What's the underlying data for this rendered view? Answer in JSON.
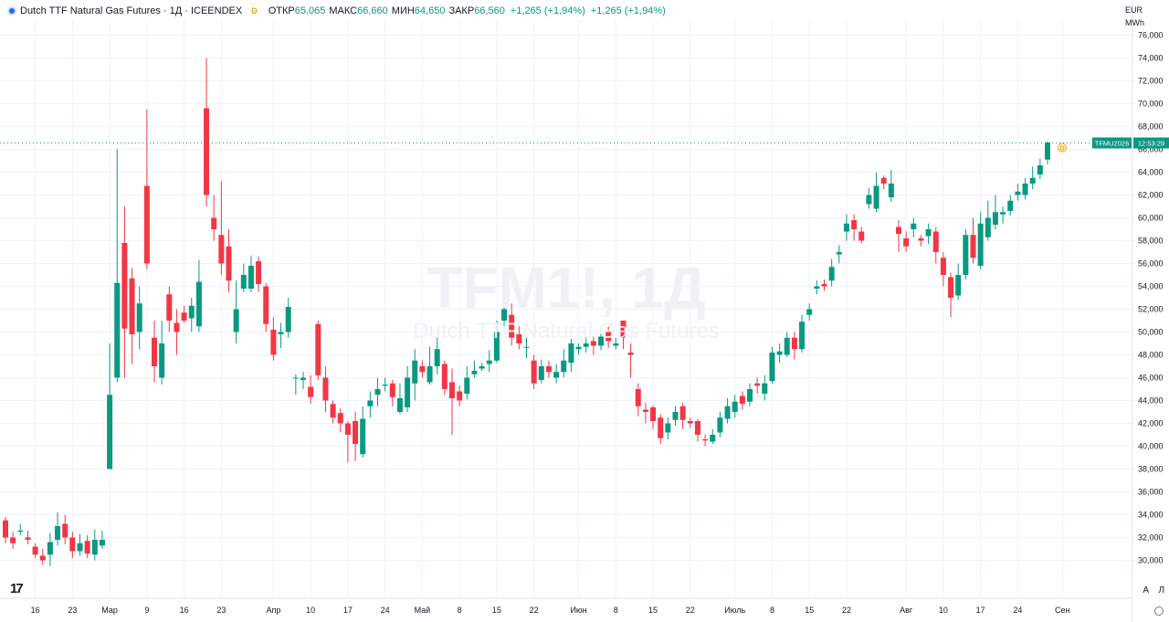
{
  "header": {
    "title": "Dutch TTF Natural Gas Futures · 1Д · ICEENDEX",
    "market_badge": "D",
    "open_label": "ОТКР",
    "open": "65,065",
    "high_label": "МАКС",
    "high": "66,660",
    "low_label": "МИН",
    "low": "64,650",
    "close_label": "ЗАКР",
    "close": "66,560",
    "change": "+1,265 (+1,94%)",
    "change2": "+1,265 (+1,94%)"
  },
  "units": {
    "currency": "EUR",
    "unit": "MWh"
  },
  "watermark": {
    "symbol": "TFM1!, 1Д",
    "name": "Dutch TTF Natural Gas Futures"
  },
  "price_label": {
    "ticker": "TFMU2026",
    "countdown": "12:53:29"
  },
  "controls": {
    "auto": "A",
    "log": "Л"
  },
  "logo": "17",
  "colors": {
    "up": "#089981",
    "down": "#f23645",
    "price_line": "#089981",
    "grid": "#f0f3fa"
  },
  "chart_data": {
    "type": "candlestick",
    "title": "Dutch TTF Natural Gas Futures · 1Д · ICEENDEX",
    "ylim": [
      29,
      77
    ],
    "y_ticks": [
      "30,000",
      "32,000",
      "34,000",
      "36,000",
      "38,000",
      "40,000",
      "42,000",
      "44,000",
      "46,000",
      "48,000",
      "50,000",
      "52,000",
      "54,000",
      "56,000",
      "58,000",
      "60,000",
      "62,000",
      "64,000",
      "66,000",
      "68,000",
      "70,000",
      "72,000",
      "74,000",
      "76,000"
    ],
    "x_ticks": [
      {
        "label": "16",
        "i": 4
      },
      {
        "label": "23",
        "i": 9
      },
      {
        "label": "Мар",
        "i": 14
      },
      {
        "label": "9",
        "i": 19
      },
      {
        "label": "16",
        "i": 24
      },
      {
        "label": "23",
        "i": 29
      },
      {
        "label": "Апр",
        "i": 36
      },
      {
        "label": "10",
        "i": 41
      },
      {
        "label": "17",
        "i": 46
      },
      {
        "label": "24",
        "i": 51
      },
      {
        "label": "Май",
        "i": 56
      },
      {
        "label": "8",
        "i": 61
      },
      {
        "label": "15",
        "i": 66
      },
      {
        "label": "22",
        "i": 71
      },
      {
        "label": "Июн",
        "i": 77
      },
      {
        "label": "8",
        "i": 82
      },
      {
        "label": "15",
        "i": 87
      },
      {
        "label": "22",
        "i": 92
      },
      {
        "label": "Июль",
        "i": 98
      },
      {
        "label": "8",
        "i": 103
      },
      {
        "label": "15",
        "i": 108
      },
      {
        "label": "22",
        "i": 113
      },
      {
        "label": "Авг",
        "i": 121
      },
      {
        "label": "10",
        "i": 126
      },
      {
        "label": "17",
        "i": 131
      },
      {
        "label": "24",
        "i": 136
      },
      {
        "label": "Сен",
        "i": 142
      }
    ],
    "last_price": 66.56,
    "candles": [
      [
        33.5,
        32.0,
        33.8,
        31.5
      ],
      [
        32.0,
        31.5,
        32.5,
        31.0
      ],
      [
        32.5,
        32.6,
        33.2,
        32.2
      ],
      [
        32.0,
        31.8,
        32.6,
        31.4
      ],
      [
        31.2,
        30.5,
        31.5,
        30.2
      ],
      [
        30.4,
        30.0,
        31.0,
        29.6
      ],
      [
        30.5,
        31.6,
        32.4,
        29.5
      ],
      [
        31.8,
        33.0,
        34.2,
        31.3
      ],
      [
        33.2,
        32.0,
        34.0,
        31.4
      ],
      [
        32.0,
        30.8,
        32.5,
        30.2
      ],
      [
        30.8,
        31.5,
        32.3,
        30.4
      ],
      [
        31.7,
        30.6,
        32.2,
        30.2
      ],
      [
        30.5,
        31.8,
        32.7,
        30.0
      ],
      [
        31.3,
        31.8,
        32.6,
        31.0
      ],
      [
        38.0,
        44.5,
        49.0,
        38.0
      ],
      [
        46.0,
        54.3,
        66.0,
        45.6
      ],
      [
        57.8,
        50.3,
        61.0,
        46.0
      ],
      [
        54.7,
        49.8,
        55.6,
        47.2
      ],
      [
        50.0,
        52.5,
        54.0,
        48.5
      ],
      [
        62.8,
        56.0,
        69.5,
        55.5
      ],
      [
        49.5,
        47.0,
        51.0,
        45.6
      ],
      [
        46.0,
        49.0,
        51.0,
        45.4
      ],
      [
        53.3,
        51.0,
        54.0,
        50.0
      ],
      [
        50.8,
        50.0,
        52.0,
        48.0
      ],
      [
        51.7,
        51.0,
        52.3,
        50.8
      ],
      [
        51.2,
        52.3,
        53.0,
        50.0
      ],
      [
        50.5,
        54.4,
        56.3,
        50.0
      ],
      [
        69.6,
        62.0,
        74.0,
        61.0
      ],
      [
        60.0,
        59.0,
        62.0,
        58.0
      ],
      [
        58.5,
        56.0,
        63.2,
        55.0
      ],
      [
        57.5,
        54.5,
        59.0,
        53.5
      ],
      [
        50.0,
        52.0,
        54.5,
        49.0
      ],
      [
        53.8,
        55.0,
        56.0,
        53.5
      ],
      [
        53.8,
        55.8,
        56.7,
        53.5
      ],
      [
        56.2,
        54.2,
        56.6,
        53.5
      ],
      [
        54.0,
        50.7,
        54.3,
        50.0
      ],
      [
        50.2,
        48.0,
        51.3,
        47.5
      ],
      [
        49.8,
        50.0,
        50.8,
        48.6
      ],
      [
        50.0,
        52.2,
        53.0,
        49.5
      ],
      [
        46.0,
        46.0,
        46.3,
        44.5
      ],
      [
        45.8,
        46.0,
        46.5,
        45.0
      ],
      [
        45.2,
        44.3,
        46.2,
        43.7
      ],
      [
        50.7,
        46.2,
        51.0,
        45.8
      ],
      [
        46.0,
        44.0,
        47.0,
        43.0
      ],
      [
        43.7,
        42.5,
        44.0,
        42.0
      ],
      [
        42.9,
        42.0,
        43.3,
        41.2
      ],
      [
        42.0,
        41.0,
        42.2,
        38.6
      ],
      [
        42.2,
        40.2,
        43.0,
        38.7
      ],
      [
        39.3,
        42.4,
        43.5,
        39.0
      ],
      [
        43.5,
        44.0,
        44.8,
        42.5
      ],
      [
        44.5,
        45.0,
        46.0,
        43.5
      ],
      [
        45.3,
        45.4,
        46.0,
        44.8
      ],
      [
        45.5,
        44.3,
        45.8,
        43.5
      ],
      [
        43.0,
        44.2,
        45.5,
        42.8
      ],
      [
        43.4,
        46.0,
        47.0,
        43.0
      ],
      [
        45.5,
        47.5,
        48.5,
        44.0
      ],
      [
        47.0,
        46.5,
        47.5,
        46.0
      ],
      [
        45.6,
        47.0,
        48.7,
        45.4
      ],
      [
        47.0,
        48.5,
        49.5,
        46.3
      ],
      [
        47.2,
        45.0,
        47.5,
        44.5
      ],
      [
        45.6,
        44.2,
        46.8,
        41.0
      ],
      [
        44.8,
        44.0,
        45.3,
        43.5
      ],
      [
        44.6,
        46.0,
        47.0,
        44.1
      ],
      [
        46.3,
        46.6,
        47.5,
        46.0
      ],
      [
        46.8,
        47.0,
        47.3,
        46.6
      ],
      [
        47.2,
        47.5,
        48.4,
        46.5
      ],
      [
        47.5,
        50.0,
        51.0,
        47.3
      ],
      [
        51.0,
        52.0,
        52.5,
        50.5
      ],
      [
        51.5,
        49.5,
        52.5,
        48.8
      ],
      [
        49.8,
        49.0,
        50.5,
        48.5
      ],
      [
        48.7,
        48.7,
        49.5,
        47.7
      ],
      [
        47.5,
        45.5,
        48.0,
        45.0
      ],
      [
        45.8,
        47.0,
        47.6,
        45.5
      ],
      [
        47.0,
        46.5,
        47.5,
        46.0
      ],
      [
        46.0,
        46.5,
        47.2,
        45.5
      ],
      [
        46.5,
        47.5,
        48.5,
        46.0
      ],
      [
        47.3,
        49.0,
        49.4,
        46.5
      ],
      [
        48.5,
        48.7,
        49.0,
        48.0
      ],
      [
        48.7,
        49.0,
        49.5,
        48.2
      ],
      [
        49.2,
        48.8,
        49.6,
        48.0
      ],
      [
        48.8,
        49.6,
        50.0,
        48.4
      ],
      [
        50.0,
        49.2,
        50.5,
        48.6
      ],
      [
        48.8,
        49.0,
        49.5,
        48.5
      ],
      [
        51.0,
        49.5,
        51.0,
        48.5
      ],
      [
        48.2,
        48.0,
        49.0,
        46.0
      ],
      [
        45.0,
        43.5,
        45.5,
        42.6
      ],
      [
        43.2,
        43.0,
        43.8,
        42.0
      ],
      [
        43.4,
        42.2,
        43.6,
        41.5
      ],
      [
        42.5,
        40.7,
        42.8,
        40.2
      ],
      [
        41.2,
        42.0,
        42.5,
        40.6
      ],
      [
        42.3,
        43.0,
        43.5,
        41.8
      ],
      [
        43.5,
        42.3,
        43.8,
        41.5
      ],
      [
        42.2,
        42.0,
        42.5,
        41.6
      ],
      [
        42.2,
        41.0,
        42.4,
        40.4
      ],
      [
        40.6,
        40.5,
        41.0,
        40.0
      ],
      [
        40.4,
        41.0,
        41.5,
        40.2
      ],
      [
        41.2,
        42.5,
        43.0,
        40.8
      ],
      [
        42.4,
        43.5,
        44.2,
        42.0
      ],
      [
        43.0,
        43.9,
        44.5,
        42.5
      ],
      [
        44.4,
        43.7,
        44.8,
        43.2
      ],
      [
        43.9,
        45.0,
        45.5,
        43.5
      ],
      [
        45.5,
        45.3,
        46.0,
        44.6
      ],
      [
        44.6,
        45.5,
        46.2,
        44.0
      ],
      [
        45.7,
        48.2,
        48.7,
        45.5
      ],
      [
        48.0,
        48.3,
        49.0,
        47.3
      ],
      [
        48.0,
        49.5,
        50.0,
        47.8
      ],
      [
        49.5,
        48.5,
        50.0,
        47.6
      ],
      [
        48.5,
        50.9,
        51.5,
        48.2
      ],
      [
        51.5,
        52.0,
        52.5,
        51.0
      ],
      [
        53.8,
        54.0,
        54.5,
        53.3
      ],
      [
        54.2,
        54.0,
        54.6,
        53.6
      ],
      [
        54.5,
        55.7,
        56.4,
        54.0
      ],
      [
        56.8,
        57.0,
        57.6,
        56.0
      ],
      [
        58.8,
        59.5,
        60.3,
        58.0
      ],
      [
        59.8,
        59.0,
        60.3,
        58.0
      ],
      [
        58.8,
        58.0,
        59.2,
        57.8
      ],
      [
        61.2,
        62.0,
        62.6,
        60.8
      ],
      [
        60.8,
        62.8,
        64.0,
        60.5
      ],
      [
        63.5,
        63.0,
        63.7,
        62.5
      ],
      [
        61.8,
        63.0,
        64.2,
        61.4
      ],
      [
        59.2,
        58.6,
        59.8,
        57.0
      ],
      [
        58.2,
        57.5,
        58.8,
        57.0
      ],
      [
        59.0,
        59.5,
        60.0,
        58.3
      ],
      [
        58.2,
        58.0,
        58.5,
        57.5
      ],
      [
        58.4,
        59.0,
        59.5,
        57.7
      ],
      [
        58.8,
        57.0,
        59.2,
        56.0
      ],
      [
        56.5,
        55.0,
        57.0,
        54.0
      ],
      [
        54.8,
        53.0,
        55.2,
        51.3
      ],
      [
        53.2,
        55.0,
        56.0,
        52.8
      ],
      [
        55.0,
        58.5,
        59.0,
        54.6
      ],
      [
        58.5,
        56.5,
        60.0,
        56.0
      ],
      [
        55.8,
        59.5,
        60.5,
        55.5
      ],
      [
        58.3,
        60.0,
        61.5,
        58.0
      ],
      [
        59.4,
        60.5,
        62.0,
        59.0
      ],
      [
        60.3,
        60.5,
        61.0,
        59.5
      ],
      [
        60.6,
        61.5,
        62.0,
        60.2
      ],
      [
        62.0,
        62.3,
        63.0,
        61.5
      ],
      [
        62.0,
        63.0,
        63.5,
        61.6
      ],
      [
        63.0,
        63.5,
        64.5,
        62.5
      ],
      [
        63.8,
        64.6,
        65.2,
        63.4
      ],
      [
        65.1,
        66.6,
        66.7,
        64.7
      ]
    ]
  }
}
